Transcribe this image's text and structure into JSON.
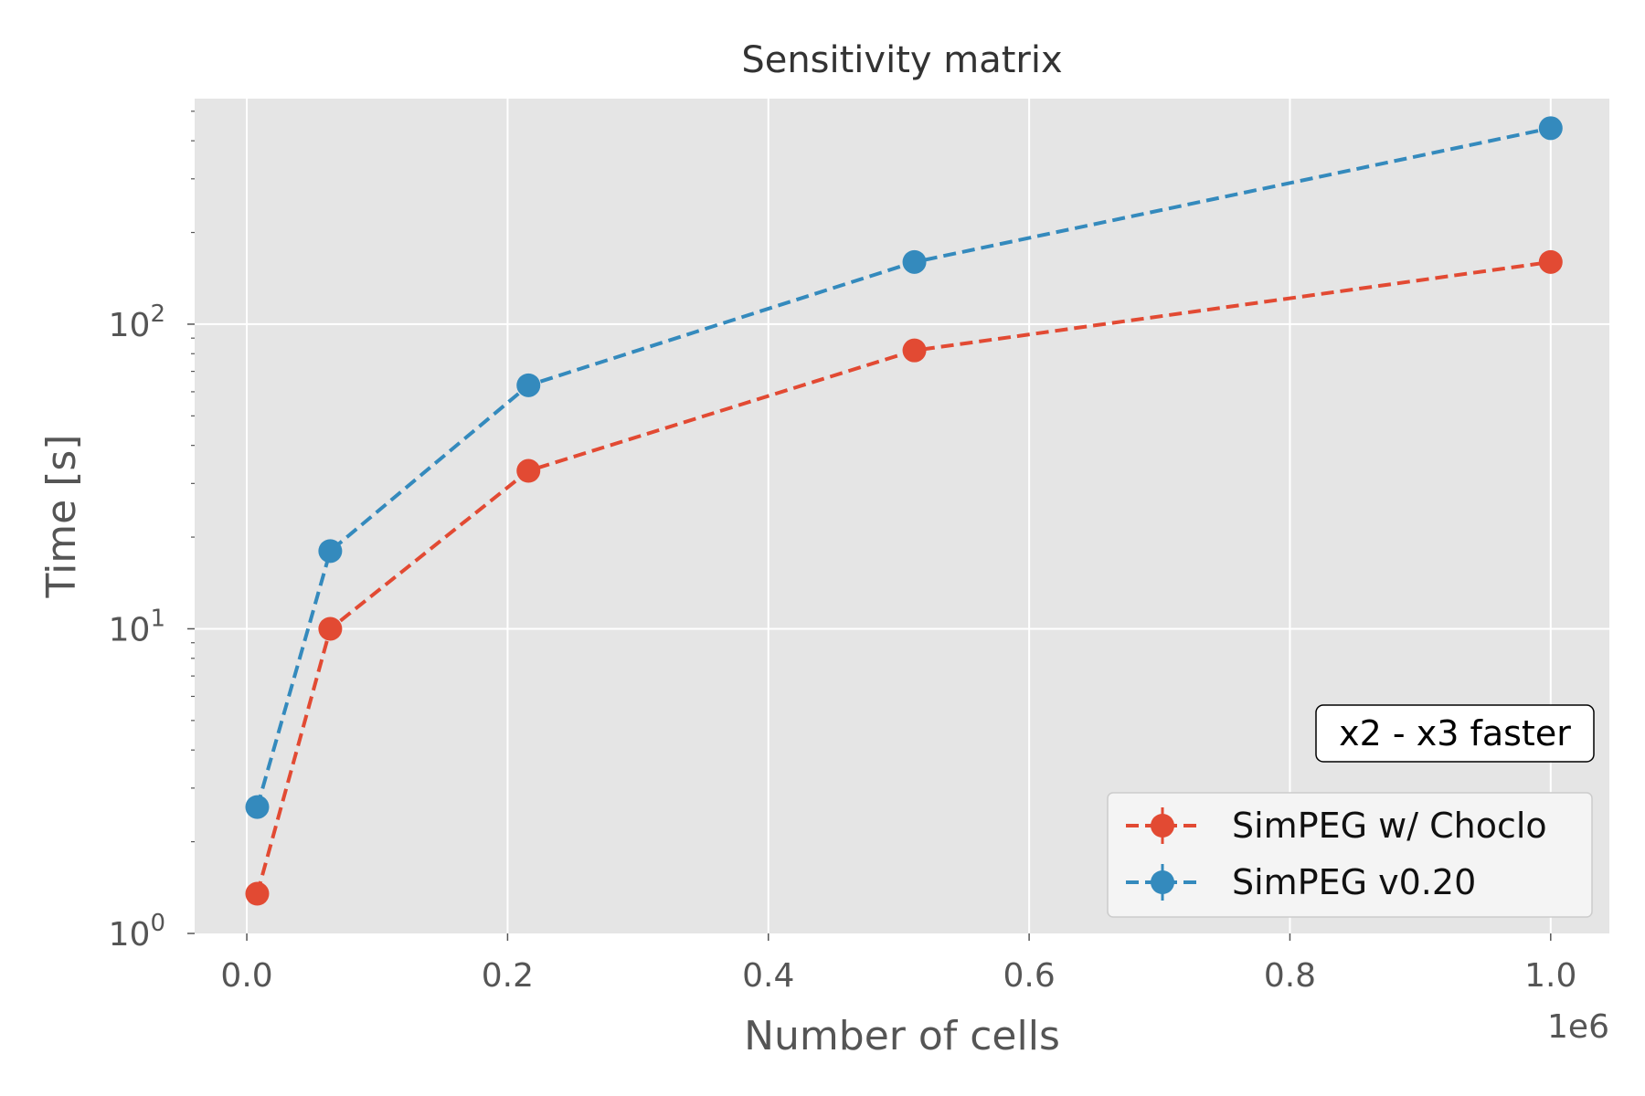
{
  "chart_data": {
    "type": "line",
    "title": "Sensitivity matrix",
    "xlabel": "Number of cells",
    "ylabel": "Time [s]",
    "x_offset_label": "1e6",
    "xlim": [
      -0.04,
      1.045
    ],
    "ylim": [
      1.0,
      550
    ],
    "yscale": "log",
    "grid": true,
    "x_ticks": [
      {
        "value": 0.0,
        "label": "0.0"
      },
      {
        "value": 0.2,
        "label": "0.2"
      },
      {
        "value": 0.4,
        "label": "0.4"
      },
      {
        "value": 0.6,
        "label": "0.6"
      },
      {
        "value": 0.8,
        "label": "0.8"
      },
      {
        "value": 1.0,
        "label": "1.0"
      }
    ],
    "y_ticks": [
      {
        "value": 1,
        "base": "10",
        "exp": "0"
      },
      {
        "value": 10,
        "base": "10",
        "exp": "1"
      },
      {
        "value": 100,
        "base": "10",
        "exp": "2"
      }
    ],
    "series": [
      {
        "name": "SimPEG w/ Choclo",
        "color": "#E24A33",
        "x": [
          0.008,
          0.064,
          0.216,
          0.512,
          1.0
        ],
        "y": [
          1.35,
          10.0,
          33.0,
          82.0,
          160.0
        ]
      },
      {
        "name": "SimPEG v0.20",
        "color": "#348ABD",
        "x": [
          0.008,
          0.064,
          0.216,
          0.512,
          1.0
        ],
        "y": [
          2.6,
          18.0,
          63.0,
          160.0,
          440.0
        ]
      }
    ],
    "legend_position": "lower-right",
    "annotation": "x2 - x3 faster"
  }
}
